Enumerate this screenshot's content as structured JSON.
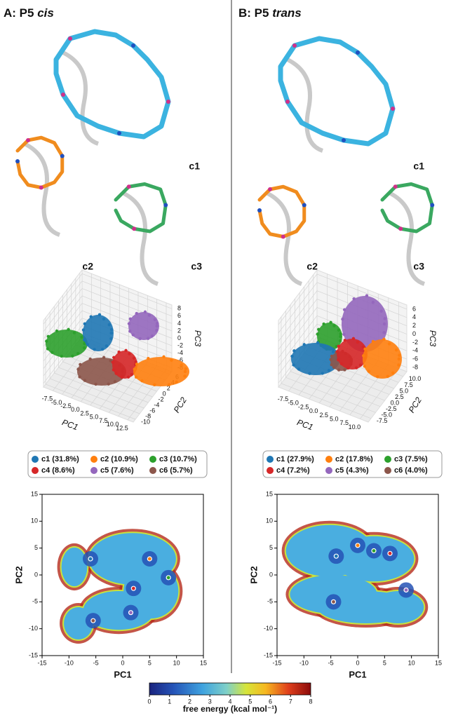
{
  "panels": [
    {
      "title_prefix": "A: P5 ",
      "title_italic": "cis",
      "conformations": [
        "c1",
        "c2",
        "c3"
      ],
      "pca3d": {
        "type": "scatter3d",
        "xlabel": "PC1",
        "ylabel": "PC2",
        "zlabel": "PC3",
        "xlim": [
          -10,
          14
        ],
        "xticks": [
          -7.5,
          {
            "value": -5,
            "label": "-5.0"
          },
          -2.5,
          {
            "value": 0,
            "label": "0.0"
          },
          2.5,
          {
            "value": 5,
            "label": "5.0"
          },
          7.5,
          {
            "value": 10,
            "label": "10.0"
          },
          12.5
        ],
        "ylim": [
          -11,
          7
        ],
        "yticks": [
          -10,
          -8,
          -6,
          -4,
          -2,
          0,
          2,
          4,
          6
        ],
        "zlim": [
          -9,
          9
        ],
        "zticks": [
          -8,
          -6,
          -4,
          -2,
          0,
          2,
          4,
          6,
          8
        ]
      },
      "legend": [
        {
          "label": "c1 (31.8%)",
          "color": "#1f77b4"
        },
        {
          "label": "c2 (10.9%)",
          "color": "#ff7f0e"
        },
        {
          "label": "c3 (10.7%)",
          "color": "#2ca02c"
        },
        {
          "label": "c4 (8.6%)",
          "color": "#d62728"
        },
        {
          "label": "c5 (7.6%)",
          "color": "#9467bd"
        },
        {
          "label": "c6 (5.7%)",
          "color": "#8c564b"
        }
      ],
      "free_energy": {
        "type": "scatter",
        "xlabel": "PC1",
        "ylabel": "PC2",
        "xlim": [
          -15,
          15
        ],
        "xticks": [
          -15,
          -10,
          -5,
          0,
          5,
          10,
          15
        ],
        "ylim": [
          -15,
          15
        ],
        "yticks": [
          -15,
          -10,
          -5,
          0,
          5,
          10,
          15
        ],
        "centers": {
          "x": [
            -6,
            5,
            8.5,
            2,
            1.5,
            -5.5
          ],
          "y": [
            3,
            3,
            -0.5,
            -2.5,
            -7,
            -8.5
          ]
        }
      }
    },
    {
      "title_prefix": "B: P5 ",
      "title_italic": "trans",
      "conformations": [
        "c1",
        "c2",
        "c3"
      ],
      "pca3d": {
        "type": "scatter3d",
        "xlabel": "PC1",
        "ylabel": "PC2",
        "zlabel": "PC3",
        "xlim": [
          -10,
          12
        ],
        "xticks": [
          -7.5,
          {
            "value": -5,
            "label": "-5.0"
          },
          -2.5,
          {
            "value": 0,
            "label": "0.0"
          },
          2.5,
          {
            "value": 5,
            "label": "5.0"
          },
          7.5,
          {
            "value": 10,
            "label": "10.0"
          }
        ],
        "ylim": [
          -9,
          12
        ],
        "yticks": [
          -7.5,
          {
            "value": -5,
            "label": "-5.0"
          },
          -2.5,
          {
            "value": 0,
            "label": "0.0"
          },
          2.5,
          {
            "value": 5,
            "label": "5.0"
          },
          7.5,
          {
            "value": 10,
            "label": "10.0"
          }
        ],
        "zlim": [
          -9,
          7
        ],
        "zticks": [
          -8,
          -6,
          -4,
          -2,
          0,
          2,
          4,
          6
        ]
      },
      "legend": [
        {
          "label": "c1 (27.9%)",
          "color": "#1f77b4"
        },
        {
          "label": "c2 (17.8%)",
          "color": "#ff7f0e"
        },
        {
          "label": "c3 (7.5%)",
          "color": "#2ca02c"
        },
        {
          "label": "c4 (7.2%)",
          "color": "#d62728"
        },
        {
          "label": "c5 (4.3%)",
          "color": "#9467bd"
        },
        {
          "label": "c6 (4.0%)",
          "color": "#8c564b"
        }
      ],
      "free_energy": {
        "type": "scatter",
        "xlabel": "PC1",
        "ylabel": "PC2",
        "xlim": [
          -15,
          15
        ],
        "xticks": [
          -15,
          -10,
          -5,
          0,
          5,
          10,
          15
        ],
        "ylim": [
          -15,
          15
        ],
        "yticks": [
          -15,
          -10,
          -5,
          0,
          5,
          10,
          15
        ],
        "centers": {
          "x": [
            -4,
            0,
            3,
            6,
            9,
            -4.5
          ],
          "y": [
            3.5,
            5.5,
            4.5,
            4,
            -2.8,
            -5
          ]
        }
      }
    }
  ],
  "colorbar": {
    "label": "free energy (kcal mol⁻¹)",
    "lim": [
      0,
      8
    ],
    "ticks": [
      0,
      1,
      2,
      3,
      4,
      5,
      6,
      7,
      8
    ]
  }
}
